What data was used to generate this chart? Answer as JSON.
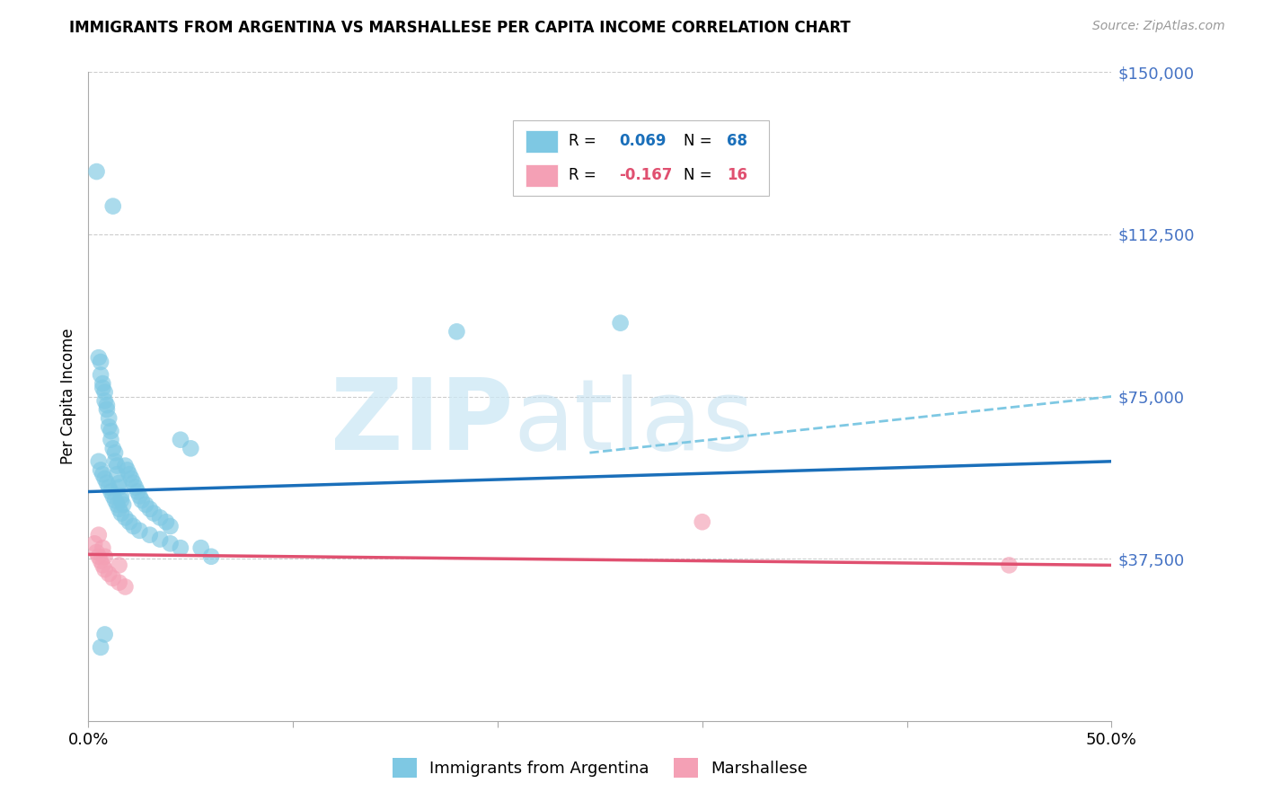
{
  "title": "IMMIGRANTS FROM ARGENTINA VS MARSHALLESE PER CAPITA INCOME CORRELATION CHART",
  "source": "Source: ZipAtlas.com",
  "ylabel": "Per Capita Income",
  "legend_label_1": "Immigrants from Argentina",
  "legend_label_2": "Marshallese",
  "R1": 0.069,
  "N1": 68,
  "R2": -0.167,
  "N2": 16,
  "color_blue": "#7ec8e3",
  "color_pink": "#f4a0b5",
  "color_blue_line": "#1a6fba",
  "color_pink_line": "#e05070",
  "color_dashed": "#7ec8e3",
  "blue_scatter_x": [
    0.004,
    0.012,
    0.005,
    0.006,
    0.006,
    0.007,
    0.007,
    0.008,
    0.008,
    0.009,
    0.009,
    0.01,
    0.01,
    0.011,
    0.011,
    0.012,
    0.013,
    0.013,
    0.014,
    0.014,
    0.015,
    0.015,
    0.016,
    0.016,
    0.017,
    0.018,
    0.019,
    0.02,
    0.021,
    0.022,
    0.023,
    0.024,
    0.025,
    0.026,
    0.028,
    0.03,
    0.032,
    0.035,
    0.038,
    0.04,
    0.005,
    0.006,
    0.007,
    0.008,
    0.009,
    0.01,
    0.011,
    0.012,
    0.013,
    0.014,
    0.015,
    0.016,
    0.018,
    0.02,
    0.022,
    0.025,
    0.03,
    0.035,
    0.04,
    0.045,
    0.18,
    0.26,
    0.045,
    0.05,
    0.055,
    0.06,
    0.008,
    0.006
  ],
  "blue_scatter_y": [
    127000,
    119000,
    84000,
    83000,
    80000,
    78000,
    77000,
    76000,
    74000,
    73000,
    72000,
    70000,
    68000,
    67000,
    65000,
    63000,
    62000,
    60000,
    59000,
    57000,
    55000,
    54000,
    52000,
    51000,
    50000,
    59000,
    58000,
    57000,
    56000,
    55000,
    54000,
    53000,
    52000,
    51000,
    50000,
    49000,
    48000,
    47000,
    46000,
    45000,
    60000,
    58000,
    57000,
    56000,
    55000,
    54000,
    53000,
    52000,
    51000,
    50000,
    49000,
    48000,
    47000,
    46000,
    45000,
    44000,
    43000,
    42000,
    41000,
    40000,
    90000,
    92000,
    65000,
    63000,
    40000,
    38000,
    20000,
    17000
  ],
  "pink_scatter_x": [
    0.003,
    0.004,
    0.005,
    0.006,
    0.007,
    0.008,
    0.01,
    0.012,
    0.015,
    0.018,
    0.005,
    0.007,
    0.008,
    0.015,
    0.3,
    0.45
  ],
  "pink_scatter_y": [
    41000,
    39000,
    38000,
    37000,
    36000,
    35000,
    34000,
    33000,
    32000,
    31000,
    43000,
    40000,
    38000,
    36000,
    46000,
    36000
  ],
  "blue_line_x": [
    0.0,
    0.5
  ],
  "blue_line_y": [
    53000,
    60000
  ],
  "dashed_line_x": [
    0.245,
    0.5
  ],
  "dashed_line_y": [
    62000,
    75000
  ],
  "pink_line_x": [
    0.0,
    0.5
  ],
  "pink_line_y": [
    38500,
    36000
  ],
  "xlim": [
    0.0,
    0.5
  ],
  "ylim": [
    0,
    150000
  ],
  "ytick_vals": [
    37500,
    75000,
    112500,
    150000
  ],
  "ytick_labels": [
    "$37,500",
    "$75,000",
    "$112,500",
    "$150,000"
  ],
  "xtick_vals": [
    0.0,
    0.1,
    0.2,
    0.3,
    0.4,
    0.5
  ],
  "xtick_labels": [
    "0.0%",
    "",
    "",
    "",
    "",
    "50.0%"
  ]
}
